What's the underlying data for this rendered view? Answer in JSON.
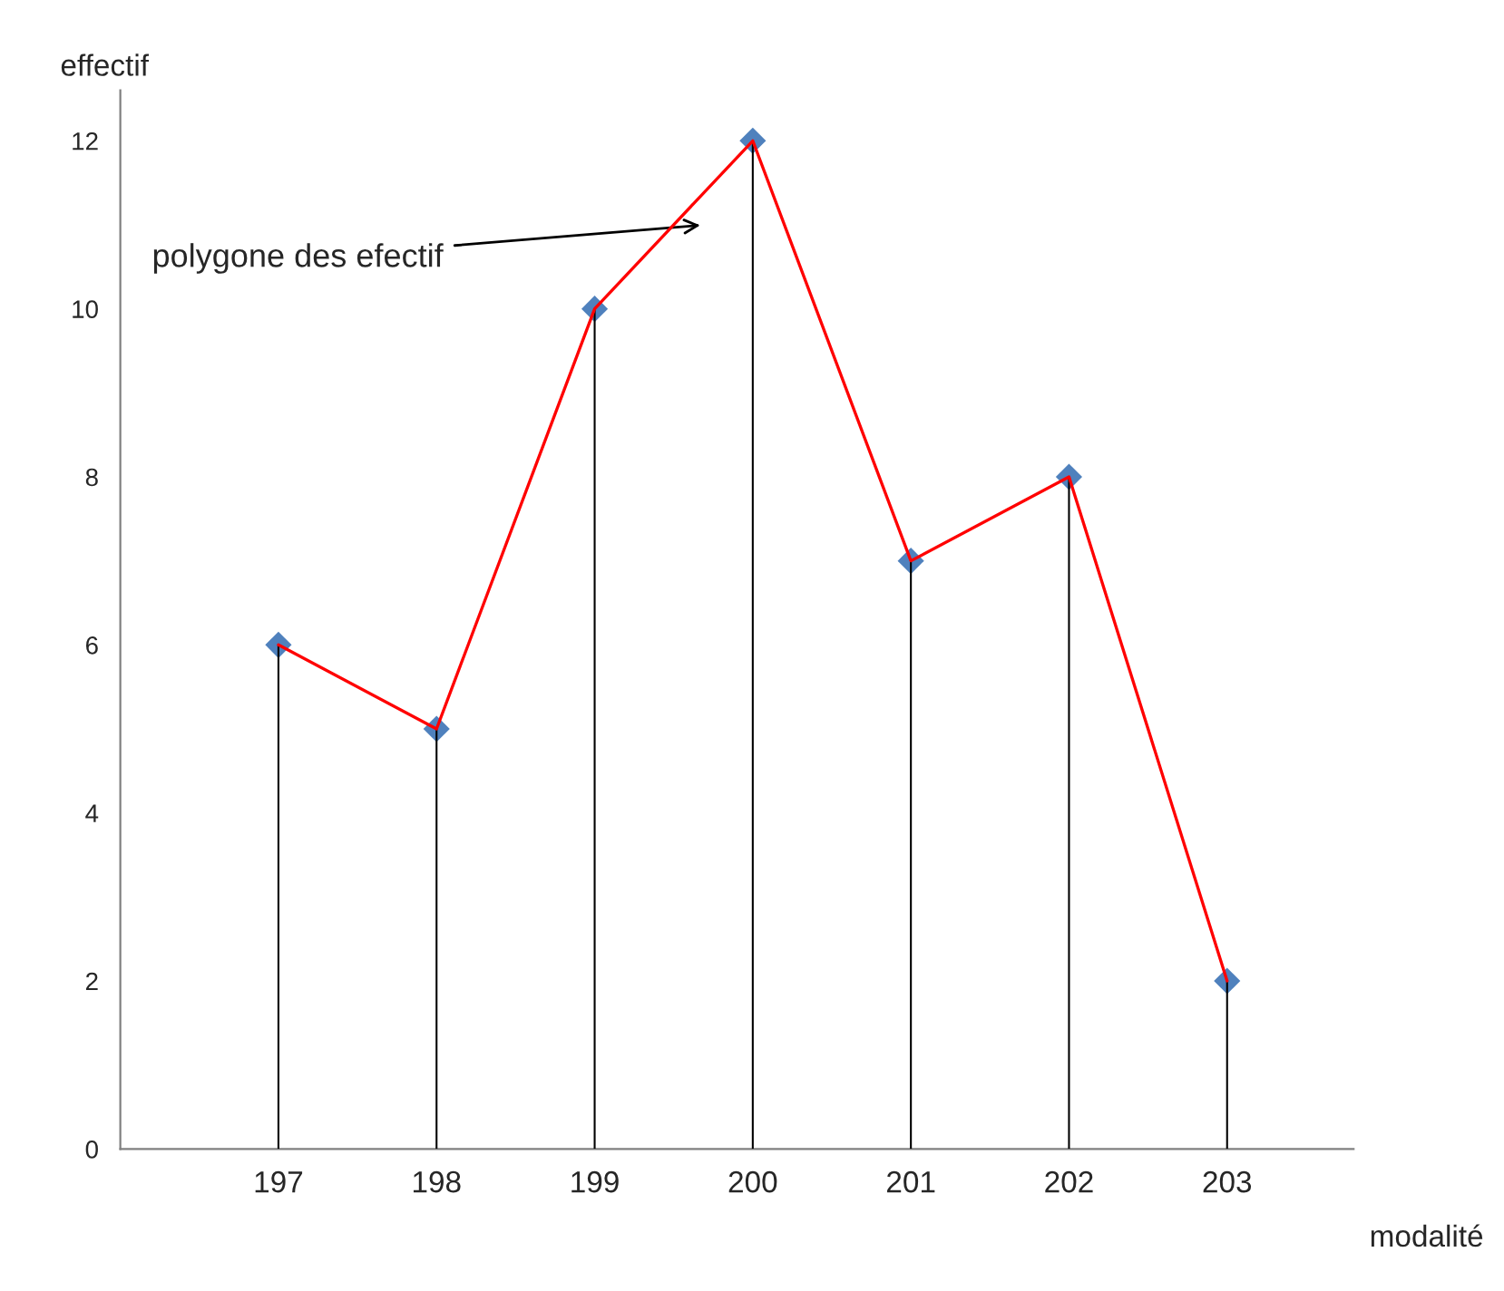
{
  "chart_data": {
    "type": "line",
    "xlabel": "modalité",
    "ylabel": "effectif",
    "categories": [
      "197",
      "198",
      "199",
      "200",
      "201",
      "202",
      "203"
    ],
    "series": [
      {
        "type": "bar",
        "color": "#000000",
        "values": [
          6,
          5,
          10,
          12,
          7,
          8,
          2
        ]
      },
      {
        "color": "#ff0000",
        "values": [
          6,
          5,
          10,
          12,
          7,
          8,
          2
        ]
      },
      {
        "type": "scatter",
        "color": "#4f81bd",
        "marker": "diamond",
        "x": [
          "197",
          "198",
          "199",
          "200",
          "201",
          "202",
          "203"
        ],
        "values": [
          6,
          5,
          10,
          12,
          7,
          8,
          2
        ]
      }
    ],
    "ylim": [
      0,
      12.6
    ],
    "yticks": [
      0,
      2,
      4,
      6,
      8,
      10,
      12
    ],
    "grid": false,
    "legend": false,
    "annotations": [
      "polygone des efectif"
    ]
  }
}
